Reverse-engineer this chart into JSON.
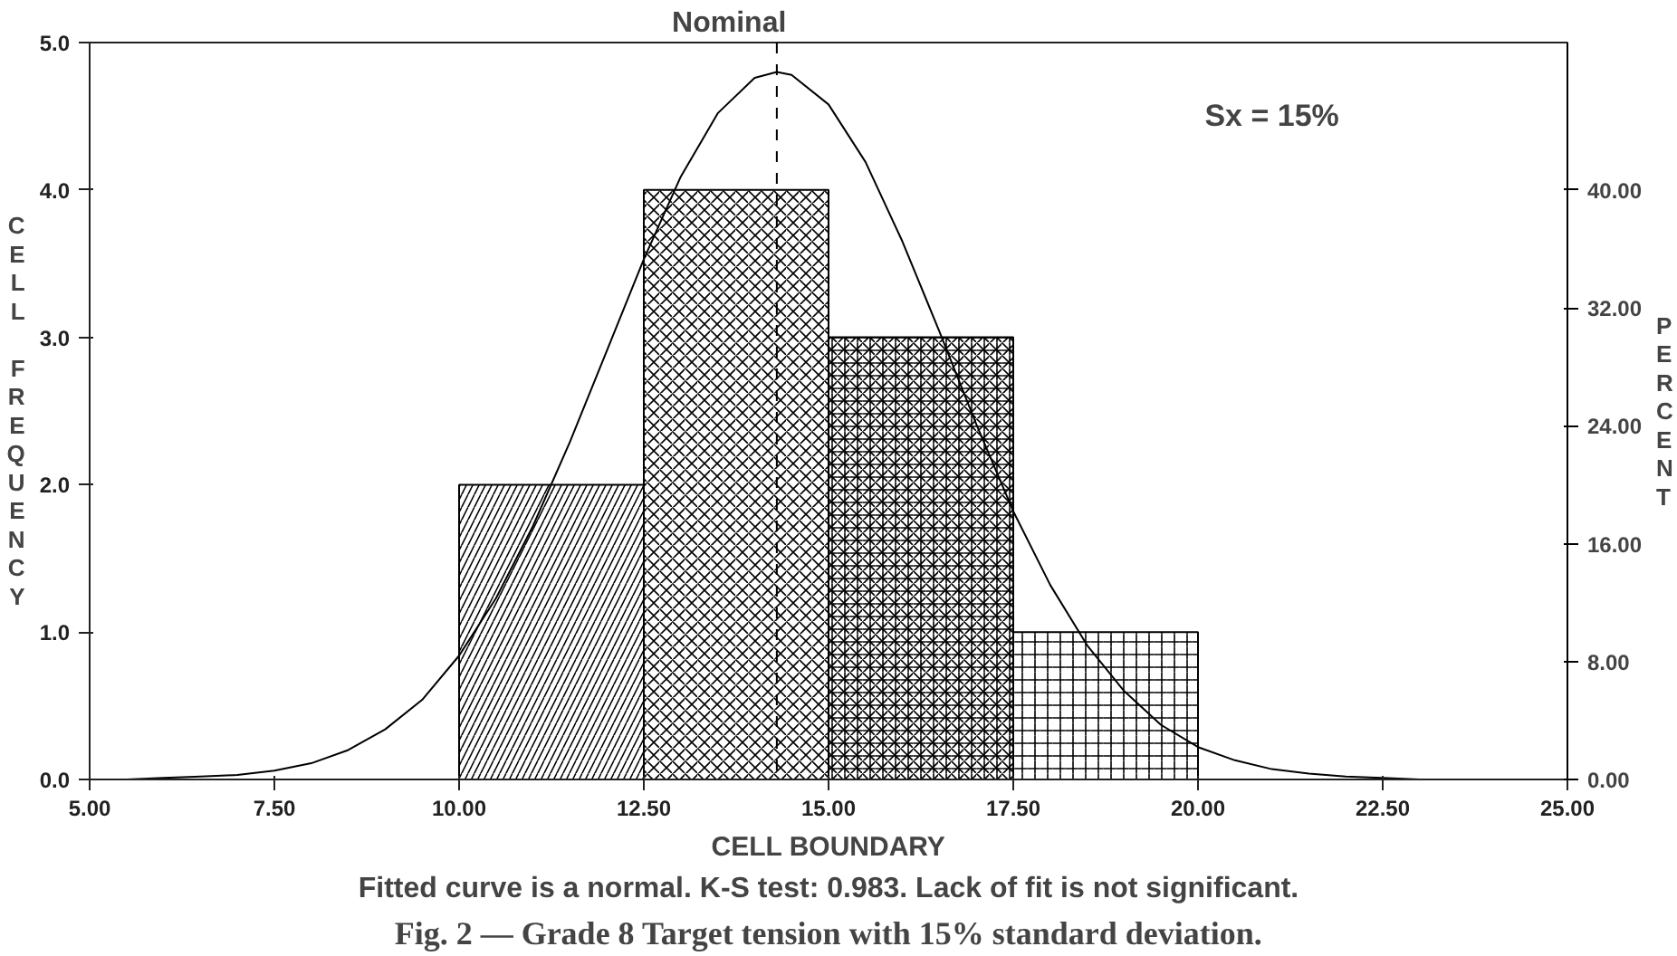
{
  "chart_data": {
    "type": "histogram",
    "title": "Fig. 2 — Grade 8 Target tension with 15% standard deviation.",
    "xlabel": "CELL BOUNDARY",
    "ylabel": "CELL FREQUENCY",
    "y2label": "PERCENT",
    "bins": [
      10,
      12.5,
      15,
      17.5,
      20
    ],
    "values": [
      2,
      4,
      3,
      1
    ],
    "color": "#000000",
    "series": [
      {
        "type": "line",
        "color": "#000000",
        "x": [
          5,
          5.5,
          6,
          6.5,
          7,
          7.5,
          8,
          8.5,
          9,
          9.5,
          10,
          10.5,
          11,
          11.5,
          12,
          12.5,
          13,
          13.5,
          14,
          14.3,
          14.5,
          15,
          15.5,
          16,
          16.5,
          17,
          17.5,
          18,
          18.5,
          19,
          19.5,
          20,
          20.5,
          21,
          21.5,
          22,
          22.5,
          23,
          25
        ],
        "values": [
          0.0,
          0.0,
          0.01,
          0.02,
          0.03,
          0.06,
          0.11,
          0.2,
          0.34,
          0.54,
          0.84,
          1.23,
          1.72,
          2.29,
          2.91,
          3.53,
          4.09,
          4.52,
          4.76,
          4.8,
          4.78,
          4.58,
          4.19,
          3.65,
          3.04,
          2.41,
          1.82,
          1.32,
          0.91,
          0.6,
          0.37,
          0.22,
          0.13,
          0.07,
          0.04,
          0.02,
          0.01,
          0.0,
          0.0
        ]
      }
    ],
    "xlim": [
      5,
      25
    ],
    "xticks": [
      {
        "value": 5,
        "label": "5.00"
      },
      {
        "value": 7.5,
        "label": "7.50"
      },
      {
        "value": 10,
        "label": "10.00"
      },
      {
        "value": 12.5,
        "label": "12.50"
      },
      {
        "value": 15,
        "label": "15.00"
      },
      {
        "value": 17.5,
        "label": "17.50"
      },
      {
        "value": 20,
        "label": "20.00"
      },
      {
        "value": 22.5,
        "label": "22.50"
      },
      {
        "value": 25,
        "label": "25.00"
      }
    ],
    "ylim": [
      0,
      5
    ],
    "yticks": [
      {
        "value": 0,
        "label": "0.0"
      },
      {
        "value": 1,
        "label": "1.0"
      },
      {
        "value": 2,
        "label": "2.0"
      },
      {
        "value": 3,
        "label": "3.0"
      },
      {
        "value": 4,
        "label": "4.0"
      },
      {
        "value": 5,
        "label": "5.0"
      }
    ],
    "y2lim": [
      0,
      50
    ],
    "y2ticks": [
      {
        "value": 0,
        "label": "0.00"
      },
      {
        "value": 8,
        "label": "8.00"
      },
      {
        "value": 16,
        "label": "16.00"
      },
      {
        "value": 24,
        "label": "24.00"
      },
      {
        "value": 32,
        "label": "32.00"
      },
      {
        "value": 40,
        "label": "40.00"
      }
    ],
    "ref_lines": [
      {
        "axis": "x",
        "value": 14.3,
        "label": "Nominal",
        "line_style": "dashed",
        "color": "#000000"
      }
    ],
    "annotations": [
      "Sx = 15%",
      "Fitted curve is a normal. K-S test: 0.983. Lack of fit is not significant."
    ],
    "grid": false,
    "marker": "none"
  }
}
